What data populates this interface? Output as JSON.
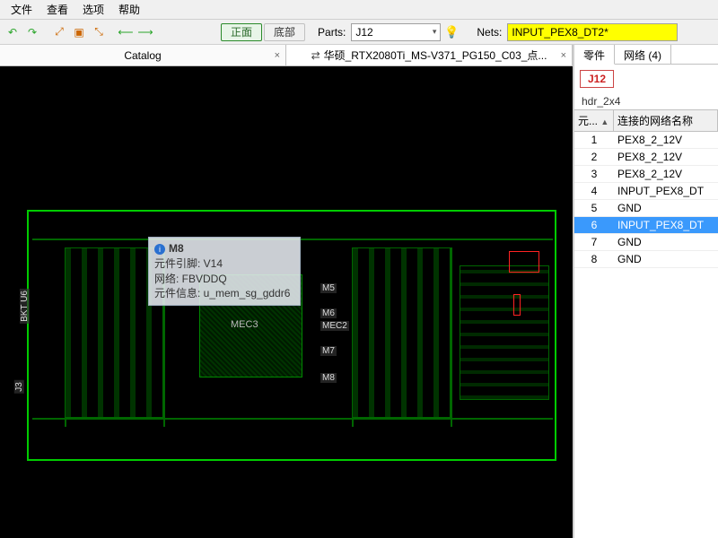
{
  "menu": {
    "file": "文件",
    "view": "查看",
    "options": "选项",
    "help": "帮助"
  },
  "toolbar": {
    "front": "正面",
    "back": "底部",
    "parts_label": "Parts:",
    "parts_value": "J12",
    "nets_label": "Nets:",
    "nets_value": "INPUT_PEX8_DT2*",
    "icon_colors": {
      "undo": "#2aa52a",
      "redo": "#2aa52a",
      "zoom": "#cc6600",
      "nav": "#2aa52a"
    }
  },
  "tabs": {
    "catalog": "Catalog",
    "design": "华硕_RTX2080Ti_MS-V371_PG150_C03_点...",
    "shuffle_glyph": "✕"
  },
  "tooltip": {
    "ref": "M8",
    "l1": "元件引脚: V14",
    "l2": "网络: FBVDDQ",
    "l3": "元件信息: u_mem_sg_gddr6"
  },
  "canvas": {
    "chip_label": "MEC3",
    "mlabels": [
      "M5",
      "M6",
      "MEC2",
      "M7",
      "M8"
    ],
    "side_label1": "BKT U6",
    "side_label2": "J3",
    "colors": {
      "bg": "#000000",
      "outline": "#00cc00",
      "trace": "#006600",
      "text": "#dddddd"
    }
  },
  "panel": {
    "tab_parts": "零件",
    "tab_nets": "网络",
    "nets_count": "(4)",
    "part_ref": "J12",
    "part_type": "hdr_2x4",
    "col_pin": "元...",
    "col_net": "连接的网络名称",
    "rows": [
      {
        "pin": "1",
        "net": "PEX8_2_12V"
      },
      {
        "pin": "2",
        "net": "PEX8_2_12V"
      },
      {
        "pin": "3",
        "net": "PEX8_2_12V"
      },
      {
        "pin": "4",
        "net": "INPUT_PEX8_DT"
      },
      {
        "pin": "5",
        "net": "GND"
      },
      {
        "pin": "6",
        "net": "INPUT_PEX8_DT"
      },
      {
        "pin": "7",
        "net": "GND"
      },
      {
        "pin": "8",
        "net": "GND"
      }
    ],
    "selected_pin": "6"
  }
}
